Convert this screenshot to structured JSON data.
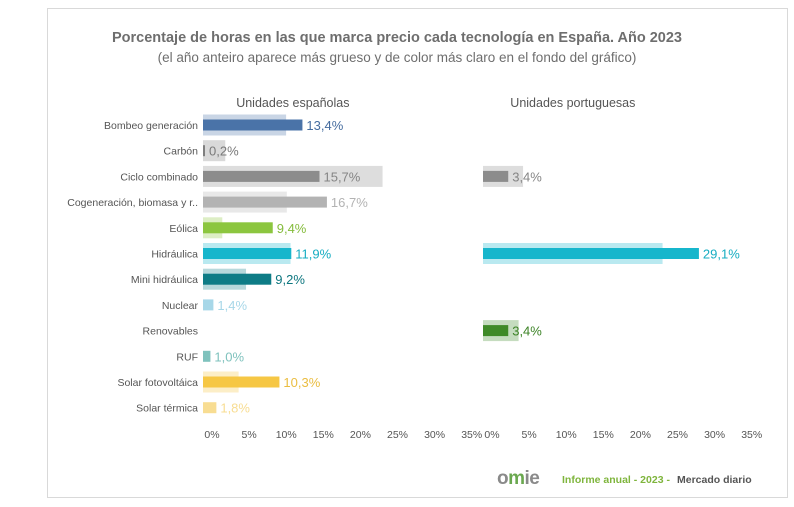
{
  "chart_data": {
    "type": "bar",
    "title": "Porcentaje de horas en las que marca precio cada tecnología en España. Año 2023",
    "subtitle": "(el año anteiro aparece más grueso y de color más claro en el fondo del gráfico)",
    "categories": [
      "Bombeo generación",
      "Carbón",
      "Ciclo combinado",
      "Cogeneración, biomasa y r..",
      "Eólica",
      "Hidráulica",
      "Mini hidráulica",
      "Nuclear",
      "Renovables",
      "RUF",
      "Solar fotovoltáica",
      "Solar térmica"
    ],
    "colors": [
      "#4a73a8",
      "#7f7f7f",
      "#8c8c8c",
      "#b3b3b3",
      "#8cc63f",
      "#17b6cc",
      "#0e7c86",
      "#a7d7e8",
      "#3f8a28",
      "#7fc2bd",
      "#f6c744",
      "#f8dd92"
    ],
    "xticks": [
      "0%",
      "5%",
      "10%",
      "15%",
      "20%",
      "25%",
      "30%",
      "35%"
    ],
    "xlim": [
      0,
      35
    ],
    "panels": [
      {
        "name": "Unidades españolas",
        "values": [
          13.4,
          0.2,
          15.7,
          16.7,
          9.4,
          11.9,
          9.2,
          1.4,
          null,
          1.0,
          10.3,
          1.8
        ],
        "labels": [
          "13,4%",
          "0,2%",
          "15,7%",
          "16,7%",
          "9,4%",
          "11,9%",
          "9,2%",
          "1,4%",
          "",
          "1,0%",
          "10,3%",
          "1,8%"
        ],
        "previous_year": [
          11.2,
          3.0,
          24.2,
          11.3,
          2.6,
          11.8,
          5.8,
          0.0,
          null,
          0.0,
          4.8,
          0.0
        ]
      },
      {
        "name": "Unidades portuguesas",
        "values": [
          null,
          null,
          3.4,
          null,
          null,
          29.1,
          null,
          null,
          3.4,
          null,
          null,
          null
        ],
        "labels": [
          "",
          "",
          "3,4%",
          "",
          "",
          "29,1%",
          "",
          "",
          "3,4%",
          "",
          "",
          ""
        ],
        "previous_year": [
          null,
          null,
          5.4,
          null,
          null,
          24.2,
          null,
          null,
          4.8,
          null,
          null,
          null
        ]
      }
    ]
  },
  "footer": {
    "logo": {
      "o": "o",
      "m": "m",
      "ie": "ie"
    },
    "report": "Informe anual - 2023 -",
    "dash": "",
    "market": "Mercado diario"
  }
}
